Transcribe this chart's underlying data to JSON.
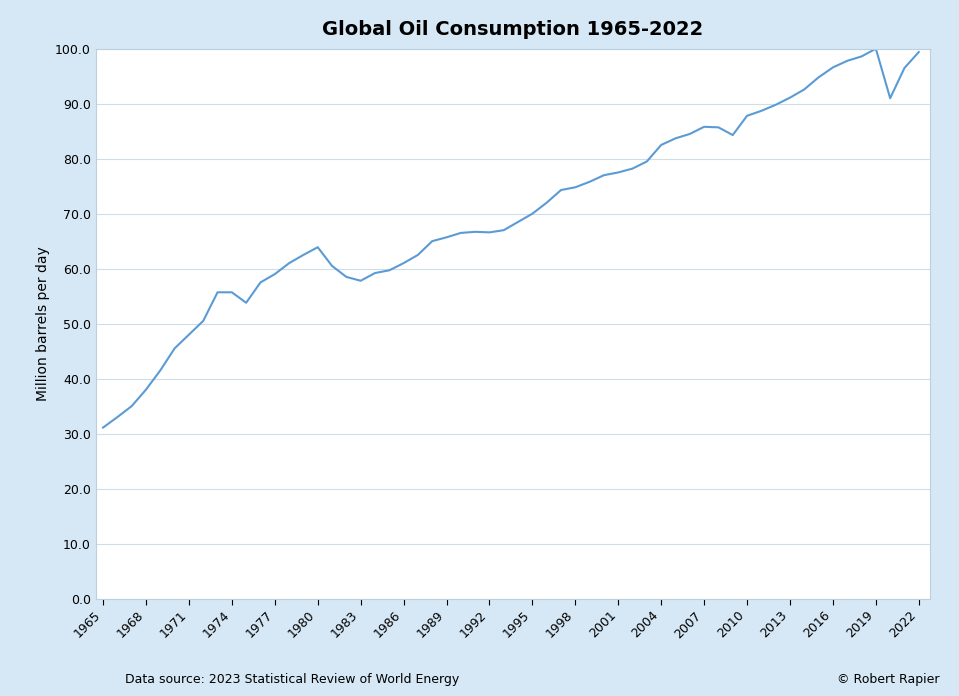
{
  "title": "Global Oil Consumption 1965-2022",
  "ylabel": "Million barrels per day",
  "footer_left": "Data source: 2023 Statistical Review of World Energy",
  "footer_right": "© Robert Rapier",
  "line_color": "#5B9BD5",
  "background_color": "#D6E8F5",
  "plot_background": "#FFFFFF",
  "spine_color": "#BBCFDE",
  "grid_color": "#D0DCE8",
  "ylim": [
    0.0,
    100.0
  ],
  "ytick_step": 10.0,
  "years": [
    1965,
    1966,
    1967,
    1968,
    1969,
    1970,
    1971,
    1972,
    1973,
    1974,
    1975,
    1976,
    1977,
    1978,
    1979,
    1980,
    1981,
    1982,
    1983,
    1984,
    1985,
    1986,
    1987,
    1988,
    1989,
    1990,
    1991,
    1992,
    1993,
    1994,
    1995,
    1996,
    1997,
    1998,
    1999,
    2000,
    2001,
    2002,
    2003,
    2004,
    2005,
    2006,
    2007,
    2008,
    2009,
    2010,
    2011,
    2012,
    2013,
    2014,
    2015,
    2016,
    2017,
    2018,
    2019,
    2020,
    2021,
    2022
  ],
  "values": [
    31.1,
    33.0,
    35.0,
    38.0,
    41.5,
    45.5,
    48.0,
    50.5,
    55.7,
    55.7,
    53.8,
    57.5,
    59.0,
    61.0,
    62.5,
    63.9,
    60.5,
    58.5,
    57.8,
    59.2,
    59.7,
    61.0,
    62.5,
    65.0,
    65.7,
    66.5,
    66.7,
    66.6,
    67.0,
    68.5,
    70.0,
    72.0,
    74.3,
    74.8,
    75.8,
    77.0,
    77.5,
    78.2,
    79.5,
    82.5,
    83.7,
    84.5,
    85.8,
    85.7,
    84.3,
    87.8,
    88.7,
    89.8,
    91.1,
    92.6,
    94.8,
    96.6,
    97.8,
    98.6,
    100.0,
    91.0,
    96.5,
    99.4
  ],
  "title_fontsize": 14,
  "axis_label_fontsize": 10,
  "tick_fontsize": 9,
  "footer_fontsize": 9
}
